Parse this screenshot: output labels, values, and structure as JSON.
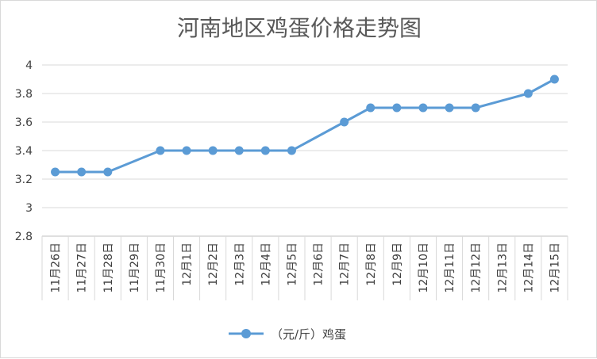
{
  "chart_data": {
    "type": "line",
    "title": "河南地区鸡蛋价格走势图",
    "xlabel": "",
    "ylabel": "",
    "categories": [
      "11月26日",
      "11月27日",
      "11月28日",
      "11月29日",
      "11月30日",
      "12月1日",
      "12月2日",
      "12月3日",
      "12月4日",
      "12月5日",
      "12月6日",
      "12月7日",
      "12月8日",
      "12月9日",
      "12月10日",
      "12月11日",
      "12月12日",
      "12月13日",
      "12月14日",
      "12月15日"
    ],
    "series": [
      {
        "name": "（元/斤）鸡蛋",
        "values": [
          3.25,
          3.25,
          3.25,
          null,
          3.4,
          3.4,
          3.4,
          3.4,
          3.4,
          3.4,
          null,
          3.6,
          3.7,
          3.7,
          3.7,
          3.7,
          3.7,
          null,
          3.8,
          3.9
        ]
      }
    ],
    "ylim": [
      2.8,
      4
    ],
    "yticks": [
      "2.8",
      "3",
      "3.2",
      "3.4",
      "3.6",
      "3.8",
      "4"
    ],
    "grid": true,
    "legend_position": "bottom",
    "colors": {
      "line": "#5b9bd5",
      "grid": "#d9d9d9",
      "axis": "#bfbfbf"
    }
  }
}
